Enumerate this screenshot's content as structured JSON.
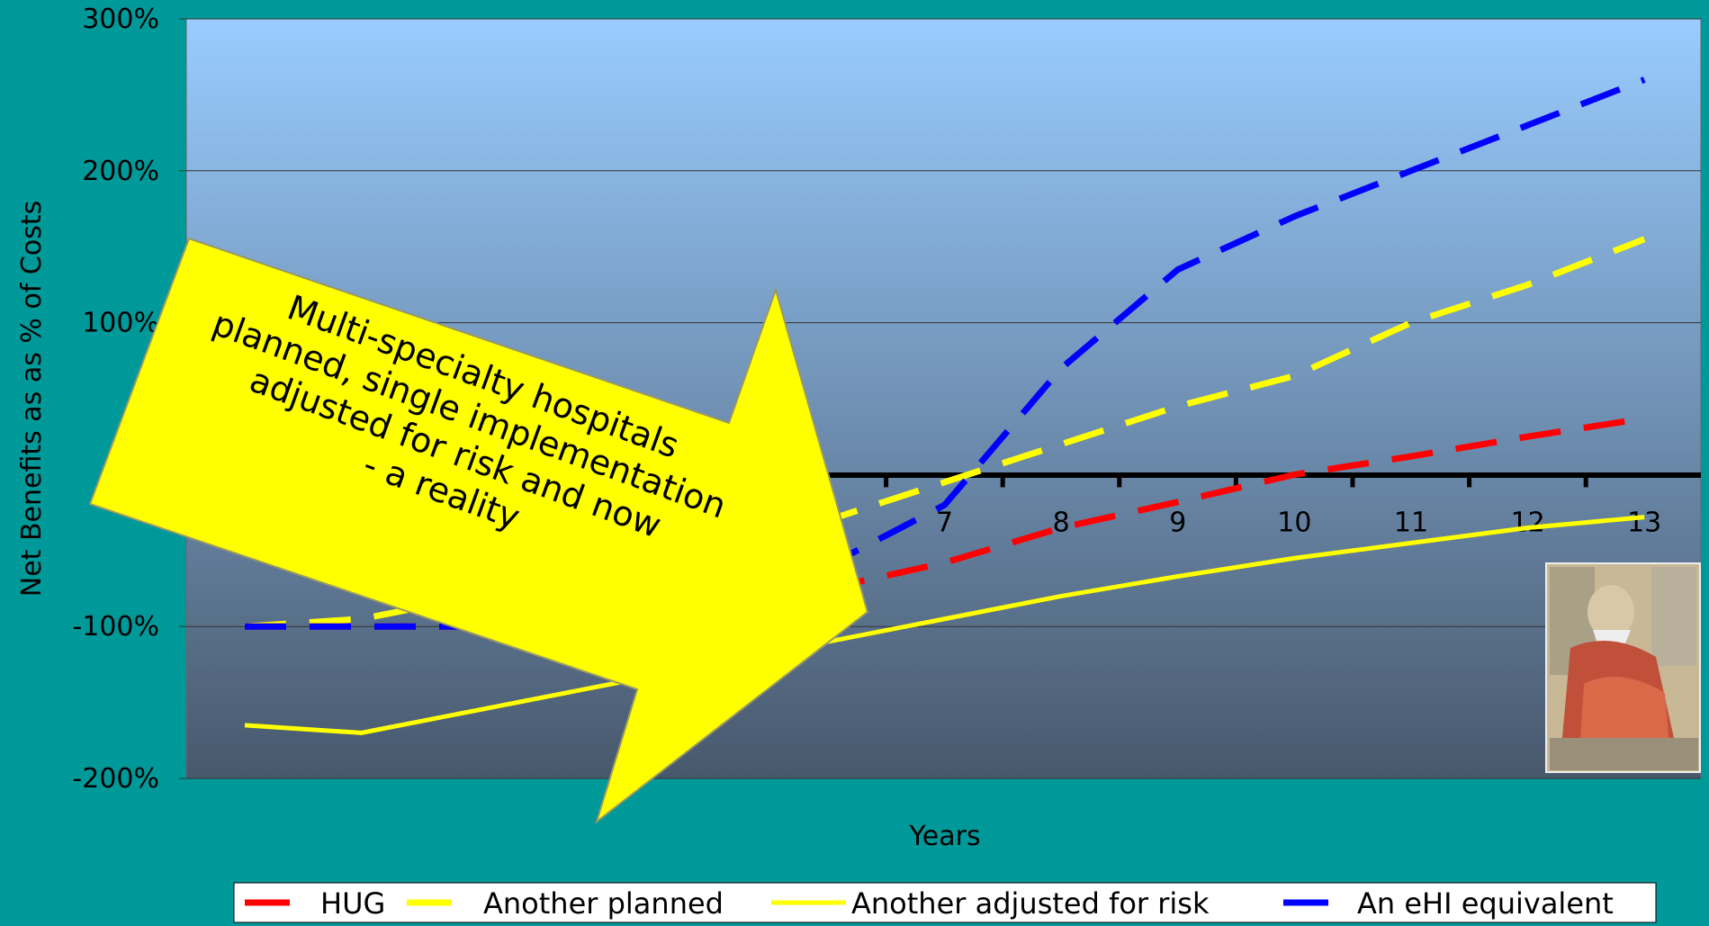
{
  "chart_data": {
    "type": "line",
    "x": [
      1,
      2,
      3,
      4,
      5,
      6,
      7,
      8,
      9,
      10,
      11,
      12,
      13
    ],
    "x_tick_labels_visible": [
      "7",
      "8",
      "9",
      "10",
      "11",
      "12",
      "13"
    ],
    "xlabel": "Years",
    "ylabel": "Net Benefits as as % of Costs",
    "ylim": [
      -200,
      300
    ],
    "y_ticks": [
      -200,
      -100,
      100,
      200,
      300
    ],
    "y_tick_labels": [
      "-200%",
      "-100%",
      "100%",
      "200%",
      "300%"
    ],
    "grid": true,
    "legend_position": "bottom",
    "series": [
      {
        "name": "HUG",
        "color": "#ff0000",
        "dash": "long",
        "values": [
          -100,
          -100,
          -100,
          -100,
          -95,
          -75,
          -58,
          -35,
          -18,
          0,
          12,
          25,
          37
        ]
      },
      {
        "name": "Another planned",
        "color": "#ffff00",
        "dash": "long",
        "values": [
          -100,
          -95,
          -80,
          -65,
          -50,
          -30,
          -5,
          20,
          45,
          65,
          100,
          125,
          155
        ]
      },
      {
        "name": "Another adjusted for risk",
        "color": "#ffff00",
        "dash": "solid",
        "values": [
          -165,
          -170,
          -155,
          -140,
          -125,
          -110,
          -95,
          -80,
          -67,
          -55,
          -45,
          -35,
          -28
        ]
      },
      {
        "name": "An eHI equivalent",
        "color": "#0000ff",
        "dash": "long",
        "values": [
          -100,
          -100,
          -100,
          -95,
          -85,
          -60,
          -20,
          70,
          135,
          170,
          200,
          230,
          260
        ]
      }
    ]
  },
  "callout": {
    "lines": [
      "Multi-specialty hospitals",
      "planned, single implementation",
      "adjusted for risk and now",
      "- a reality"
    ]
  }
}
